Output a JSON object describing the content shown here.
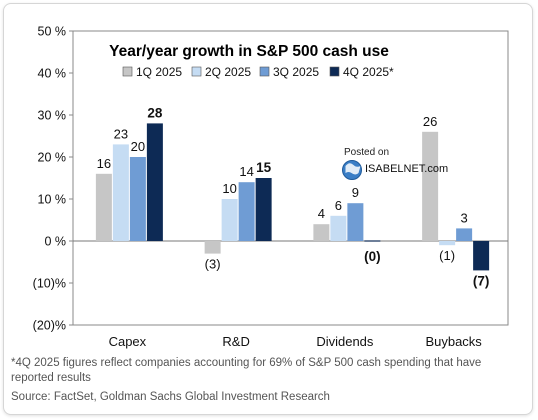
{
  "chart_data": {
    "type": "bar",
    "title": "Year/year growth in S&P 500 cash use",
    "categories": [
      "Capex",
      "R&D",
      "Dividends",
      "Buybacks"
    ],
    "series": [
      {
        "name": "1Q 2025",
        "values": [
          16,
          -3,
          4,
          26
        ],
        "color": "#c6c6c6",
        "labels": [
          "16",
          "(3)",
          "4",
          "26"
        ],
        "bold": false
      },
      {
        "name": "2Q 2025",
        "values": [
          23,
          10,
          6,
          -1
        ],
        "color": "#c5dcf3",
        "labels": [
          "23",
          "10",
          "6",
          "(1)"
        ],
        "bold": false
      },
      {
        "name": "3Q 2025",
        "values": [
          20,
          14,
          9,
          3
        ],
        "color": "#6f9cd4",
        "labels": [
          "20",
          "14",
          "9",
          "3"
        ],
        "bold": false
      },
      {
        "name": "4Q 2025*",
        "values": [
          28,
          15,
          0,
          -7
        ],
        "color": "#0d2a55",
        "labels": [
          "28",
          "15",
          "(0)",
          "(7)"
        ],
        "bold": true
      }
    ],
    "ylim": [
      -20,
      50
    ],
    "yticks": [
      -20,
      -10,
      0,
      10,
      20,
      30,
      40,
      50
    ],
    "yticklabels": [
      "(20)%",
      "(10)%",
      "0 %",
      "10 %",
      "20 %",
      "30 %",
      "40 %",
      "50 %"
    ],
    "legend_position": "top-right",
    "grid": false
  },
  "watermark": {
    "posted_on": "Posted on",
    "site": "ISABELNET.com"
  },
  "footnote": "*4Q 2025 figures reflect companies accounting for 69% of S&P 500 cash spending that have reported results",
  "source": "Source: FactSet, Goldman Sachs Global Investment Research"
}
